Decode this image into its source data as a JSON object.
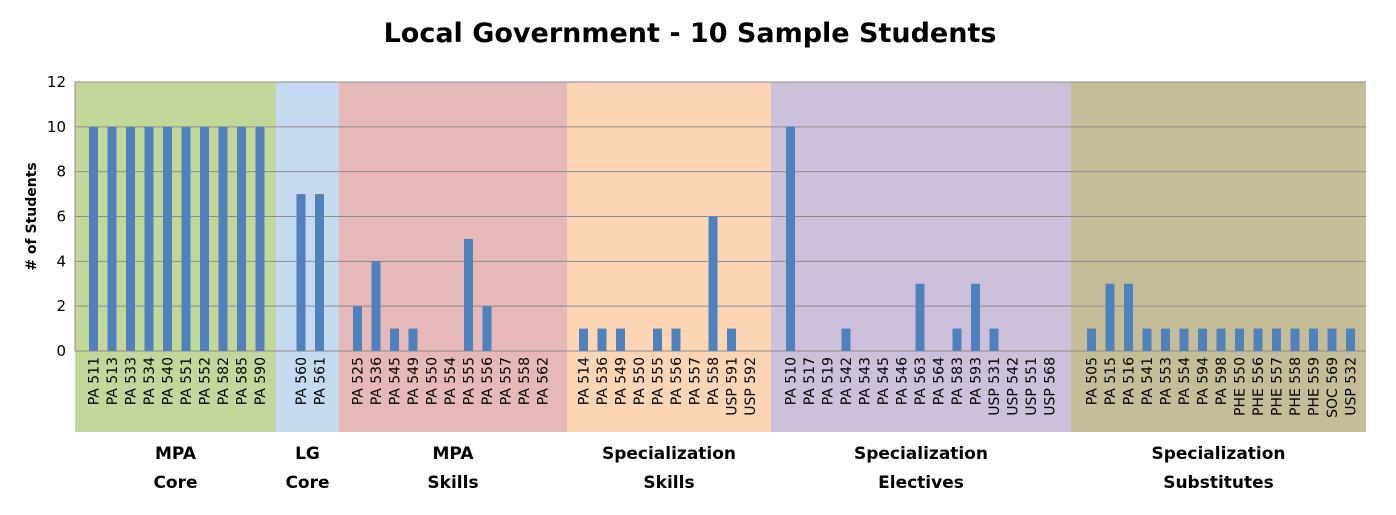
{
  "chart_data": {
    "type": "bar",
    "title": "Local Government - 10 Sample Students",
    "xlabel": "",
    "ylabel": "# of Students",
    "ylim": [
      0,
      12
    ],
    "yticks": [
      0,
      2,
      4,
      6,
      8,
      10,
      12
    ],
    "grid": true,
    "bar_color": "#4f81bd",
    "groups": [
      {
        "label_lines": [
          "MPA",
          "Core"
        ],
        "bg_color": "#c4d79b",
        "categories": [
          "PA 511",
          "PA 513",
          "PA 533",
          "PA 534",
          "PA 540",
          "PA 551",
          "PA 552",
          "PA 582",
          "PA 585",
          "PA 590"
        ],
        "values": [
          10,
          10,
          10,
          10,
          10,
          10,
          10,
          10,
          10,
          10
        ]
      },
      {
        "label_lines": [
          "LG",
          "Core"
        ],
        "bg_color": "#c5d9f1",
        "categories": [
          "PA 560",
          "PA 561"
        ],
        "values": [
          7,
          7
        ]
      },
      {
        "label_lines": [
          "MPA",
          "Skills"
        ],
        "bg_color": "#e6b8b7",
        "categories": [
          "PA 525",
          "PA 536",
          "PA 545",
          "PA 549",
          "PA 550",
          "PA 554",
          "PA 555",
          "PA 556",
          "PA 557",
          "PA 558",
          "PA 562"
        ],
        "values": [
          2,
          4,
          1,
          1,
          0,
          0,
          5,
          2,
          0,
          0,
          0
        ]
      },
      {
        "label_lines": [
          "Specialization",
          "Skills"
        ],
        "bg_color": "#fcd5b4",
        "categories": [
          "PA 514",
          "PA 536",
          "PA 549",
          "PA 550",
          "PA 555",
          "PA 556",
          "PA 557",
          "PA 558",
          "USP 591",
          "USP 592"
        ],
        "values": [
          1,
          1,
          1,
          0,
          1,
          1,
          0,
          6,
          1,
          0
        ]
      },
      {
        "label_lines": [
          "Specialization",
          "Electives"
        ],
        "bg_color": "#ccc0da",
        "categories": [
          "PA 510",
          "PA 517",
          "PA 519",
          "PA 542",
          "PA 543",
          "PA 545",
          "PA 546",
          "PA 563",
          "PA 564",
          "PA 583",
          "PA 593",
          "USP 531",
          "USP 542",
          "USP 551",
          "USP 568"
        ],
        "values": [
          10,
          0,
          0,
          1,
          0,
          0,
          0,
          3,
          0,
          1,
          3,
          1,
          0,
          0,
          0
        ]
      },
      {
        "label_lines": [
          "Specialization",
          "Substitutes"
        ],
        "bg_color": "#c4bd97",
        "categories": [
          "PA 505",
          "PA 515",
          "PA 516",
          "PA 541",
          "PA 553",
          "PA 554",
          "PA 594",
          "PA 598",
          "PHE 550",
          "PHE 556",
          "PHE 557",
          "PHE 558",
          "PHE 559",
          "SOC 569",
          "USP 532"
        ],
        "values": [
          1,
          3,
          3,
          1,
          1,
          1,
          1,
          1,
          1,
          1,
          1,
          1,
          1,
          1,
          1
        ]
      }
    ]
  }
}
